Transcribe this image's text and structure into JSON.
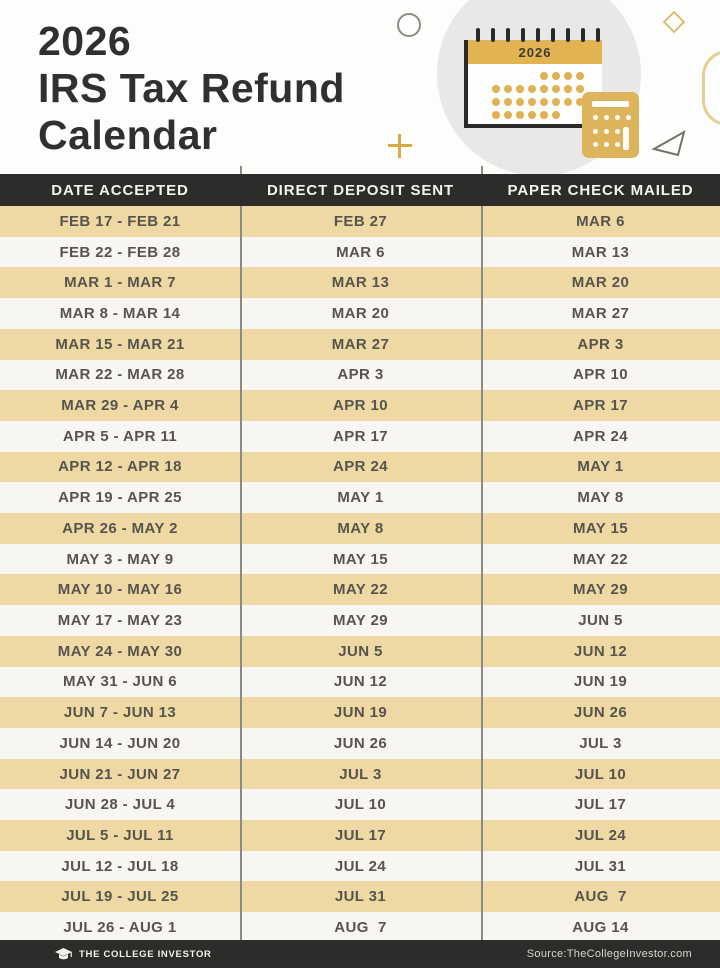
{
  "title": {
    "line1": "2026",
    "line2": "IRS Tax Refund",
    "line3": "Calendar"
  },
  "illustration": {
    "calendar_year": "2026"
  },
  "chart_data": {
    "type": "table",
    "title": "2026 IRS Tax Refund Calendar",
    "columns": [
      "DATE ACCEPTED",
      "DIRECT DEPOSIT SENT",
      "PAPER CHECK MAILED"
    ],
    "rows": [
      [
        "FEB 17 - FEB 21",
        "FEB 27",
        "MAR 6"
      ],
      [
        "FEB 22 - FEB 28",
        "MAR 6",
        "MAR 13"
      ],
      [
        "MAR 1 - MAR 7",
        "MAR 13",
        "MAR 20"
      ],
      [
        "MAR 8 - MAR 14",
        "MAR 20",
        "MAR 27"
      ],
      [
        "MAR 15 - MAR 21",
        "MAR 27",
        "APR 3"
      ],
      [
        "MAR 22 - MAR 28",
        "APR 3",
        "APR 10"
      ],
      [
        "MAR 29 - APR 4",
        "APR 10",
        "APR 17"
      ],
      [
        "APR 5 - APR 11",
        "APR 17",
        "APR 24"
      ],
      [
        "APR 12 - APR 18",
        "APR 24",
        "MAY 1"
      ],
      [
        "APR 19 - APR 25",
        "MAY 1",
        "MAY 8"
      ],
      [
        "APR 26 - MAY 2",
        "MAY 8",
        "MAY 15"
      ],
      [
        "MAY 3 - MAY 9",
        "MAY 15",
        "MAY 22"
      ],
      [
        "MAY 10 - MAY 16",
        "MAY 22",
        "MAY 29"
      ],
      [
        "MAY 17 - MAY 23",
        "MAY 29",
        "JUN 5"
      ],
      [
        "MAY 24 - MAY 30",
        "JUN 5",
        "JUN 12"
      ],
      [
        "MAY 31 - JUN 6",
        "JUN 12",
        "JUN 19"
      ],
      [
        "JUN 7 - JUN 13",
        "JUN 19",
        "JUN 26"
      ],
      [
        "JUN 14 - JUN 20",
        "JUN 26",
        "JUL 3"
      ],
      [
        "JUN 21 - JUN 27",
        "JUL 3",
        "JUL 10"
      ],
      [
        "JUN 28 - JUL 4",
        "JUL 10",
        "JUL 17"
      ],
      [
        "JUL 5 - JUL 11",
        "JUL 17",
        "JUL 24"
      ],
      [
        "JUL 12 - JUL 18",
        "JUL 24",
        "JUL 31"
      ],
      [
        "JUL 19 - JUL 25",
        "JUL 31",
        "AUG  7"
      ],
      [
        "JUL 26 - AUG 1",
        "AUG  7",
        "AUG 14"
      ]
    ],
    "layout": {
      "row_striping": [
        "tan",
        "white"
      ],
      "header_position": "top"
    }
  },
  "footer": {
    "brand": "THE COLLEGE INVESTOR",
    "source": "Source:TheCollegeInvestor.com"
  },
  "colors": {
    "row_tan": "#eed9a4",
    "row_white": "#f8f6f2",
    "header_dark": "#2d2c2a",
    "accent_gold": "#dfb254",
    "cell_text": "#57544d",
    "title_text": "#31302e"
  }
}
